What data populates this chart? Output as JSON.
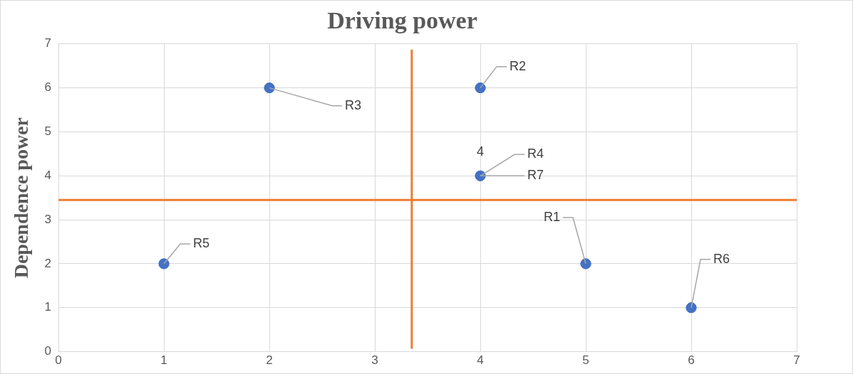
{
  "chart_data": {
    "type": "scatter",
    "title": "Driving power",
    "ylabel": "Dependence power",
    "x": [
      1,
      2,
      4,
      4,
      5,
      6
    ],
    "values": [
      2,
      6,
      6,
      4,
      2,
      1
    ],
    "color": "#4472c4",
    "marker": "circle",
    "xlim": [
      0,
      7
    ],
    "xticks": [
      0,
      1,
      2,
      3,
      4,
      5,
      6,
      7
    ],
    "ylim": [
      0,
      7
    ],
    "yticks": [
      0,
      1,
      2,
      3,
      4,
      5,
      6,
      7
    ],
    "grid": true,
    "legend": false,
    "ref_lines": [
      {
        "axis": "x",
        "value": 3.35,
        "color": "#ed7d31"
      },
      {
        "axis": "y",
        "value": 3.45,
        "color": "#ed7d31"
      }
    ],
    "annotations": [
      {
        "text": "R5",
        "x": 1,
        "y": 2
      },
      {
        "text": "R3",
        "x": 2,
        "y": 6
      },
      {
        "text": "R2",
        "x": 4,
        "y": 6
      },
      {
        "text": "4",
        "x": 4,
        "y": 4
      },
      {
        "text": "R4",
        "x": 4,
        "y": 4
      },
      {
        "text": "R7",
        "x": 4,
        "y": 4
      },
      {
        "text": "R1",
        "x": 5,
        "y": 2
      },
      {
        "text": "R6",
        "x": 6,
        "y": 1
      }
    ]
  }
}
